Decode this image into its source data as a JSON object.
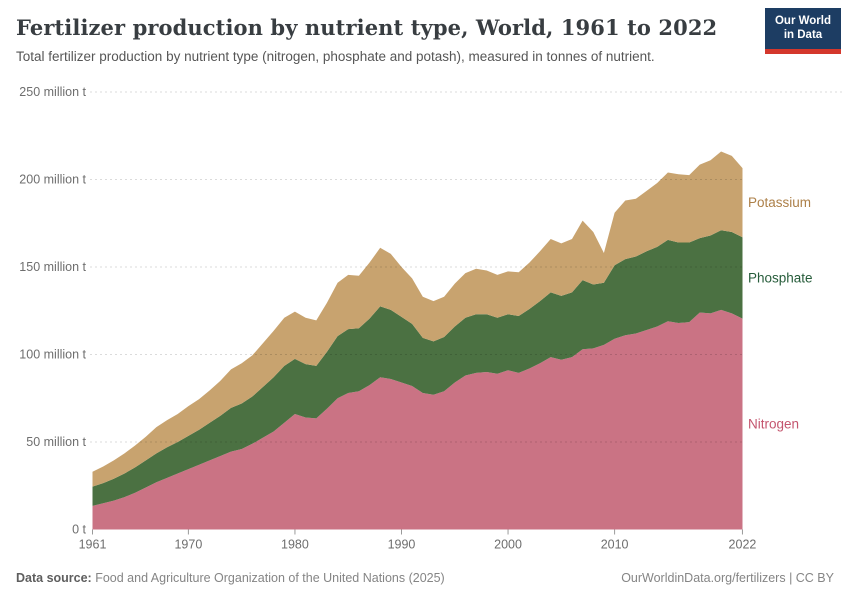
{
  "header": {
    "title": "Fertilizer production by nutrient type, World, 1961 to 2022",
    "subtitle": "Total fertilizer production by nutrient type (nitrogen, phosphate and potash), measured in tonnes of nutrient."
  },
  "logo": {
    "line1": "Our World",
    "line2": "in Data",
    "bg_color": "#1d3d63",
    "stripe_color": "#d4372c"
  },
  "chart_data": {
    "type": "area",
    "stacked": true,
    "title": "Fertilizer production by nutrient type, World, 1961 to 2022",
    "xlabel": "",
    "ylabel": "tonnes of nutrient",
    "ylim": [
      0,
      250
    ],
    "grid": true,
    "legend_position": "right-inline",
    "years": [
      1961,
      1962,
      1963,
      1964,
      1965,
      1966,
      1967,
      1968,
      1969,
      1970,
      1971,
      1972,
      1973,
      1974,
      1975,
      1976,
      1977,
      1978,
      1979,
      1980,
      1981,
      1982,
      1983,
      1984,
      1985,
      1986,
      1987,
      1988,
      1989,
      1990,
      1991,
      1992,
      1993,
      1994,
      1995,
      1996,
      1997,
      1998,
      1999,
      2000,
      2001,
      2002,
      2003,
      2004,
      2005,
      2006,
      2007,
      2008,
      2009,
      2010,
      2011,
      2012,
      2013,
      2014,
      2015,
      2016,
      2017,
      2018,
      2019,
      2020,
      2021,
      2022
    ],
    "unit": "million t",
    "series": [
      {
        "name": "Nitrogen",
        "fill_color": "#ca7384",
        "label_color": "#c4556e",
        "values": [
          13.5,
          15,
          16.5,
          18.5,
          21,
          24,
          27,
          29.5,
          32,
          34.5,
          37,
          39.5,
          42,
          44.5,
          46,
          49,
          52.5,
          56,
          61,
          66,
          64,
          63.5,
          69,
          75,
          78,
          79,
          82.5,
          87,
          86,
          84,
          82,
          78,
          77,
          79,
          84,
          88,
          89.5,
          90,
          89,
          91,
          89.5,
          92,
          95,
          98.5,
          97,
          98.5,
          103,
          103.5,
          105.5,
          109,
          111,
          112,
          114,
          116,
          119,
          118,
          118.5,
          124,
          123.5,
          125.5,
          123.5,
          120.5
        ]
      },
      {
        "name": "Phosphate",
        "fill_color": "#4b7142",
        "label_color": "#265c3a",
        "values": [
          11,
          11.5,
          12.5,
          13.5,
          14.5,
          15.5,
          16.5,
          17.5,
          18,
          19,
          20,
          21.5,
          23,
          25,
          26,
          27,
          29,
          31,
          32.5,
          31.5,
          30.5,
          30,
          32.5,
          35.5,
          36.5,
          36,
          38,
          40.5,
          39.5,
          37.5,
          35.5,
          31.5,
          30.5,
          31,
          32,
          33,
          33.5,
          33,
          32,
          32,
          32.5,
          34,
          35.5,
          37,
          36.5,
          37,
          39.5,
          36.5,
          35.5,
          42,
          43.5,
          44,
          45,
          45.5,
          46.5,
          46,
          45.5,
          42.5,
          44.5,
          45.5,
          46.5,
          46.5
        ]
      },
      {
        "name": "Potassium",
        "fill_color": "#c8a36f",
        "label_color": "#ad8049",
        "values": [
          8.5,
          9.5,
          10.5,
          11.5,
          12.5,
          13.5,
          15,
          15.5,
          16,
          17,
          17.5,
          18.5,
          20,
          22,
          23,
          23.5,
          25,
          26.5,
          27.5,
          27,
          26.5,
          26,
          28,
          30.5,
          31,
          30,
          32,
          33.5,
          32,
          28.5,
          26,
          23.5,
          23,
          23,
          24.5,
          25.5,
          26,
          25,
          24.5,
          24.5,
          25,
          26.5,
          28.5,
          30.5,
          30,
          30.5,
          34,
          30,
          17,
          30,
          33.5,
          33,
          34.5,
          36.5,
          38.5,
          39,
          38.5,
          42,
          43,
          45,
          43.5,
          39.5
        ]
      }
    ],
    "yticks": [
      {
        "value": 250,
        "label": "250 million t"
      },
      {
        "value": 200,
        "label": "200 million t"
      },
      {
        "value": 150,
        "label": "150 million t"
      },
      {
        "value": 100,
        "label": "100 million t"
      },
      {
        "value": 50,
        "label": "50 million t"
      },
      {
        "value": 0,
        "label": "0 t"
      }
    ],
    "xticks": [
      1961,
      1970,
      1980,
      1990,
      2000,
      2010,
      2022
    ]
  },
  "footer": {
    "datasource_label": "Data source:",
    "datasource_value": " Food and Agriculture Organization of the United Nations (2025)",
    "credit": "OurWorldinData.org/fertilizers | CC BY"
  }
}
